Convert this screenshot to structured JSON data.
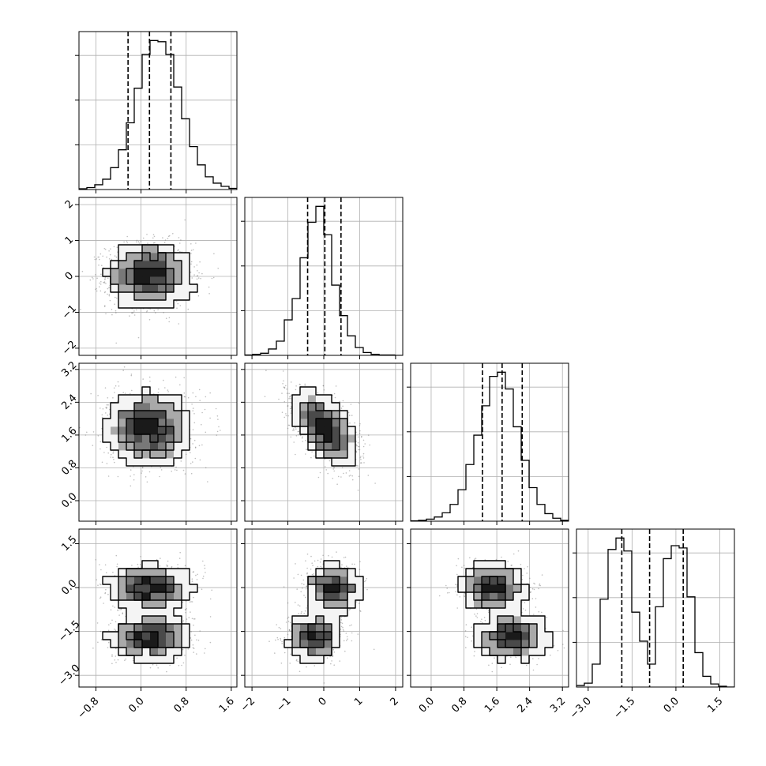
{
  "chart_data": {
    "type": "corner",
    "grid": true,
    "parameters": [
      {
        "range": [
          -1.1,
          1.7
        ],
        "ticks": [
          -0.8,
          0.0,
          0.8,
          1.6
        ],
        "tick_labels": [
          "−0.8",
          "0.0",
          "0.8",
          "1.6"
        ],
        "quantiles": [
          -0.23,
          0.15,
          0.53
        ],
        "histogram": [
          2,
          5,
          12,
          26,
          55,
          100,
          168,
          255,
          340,
          375,
          372,
          340,
          258,
          178,
          108,
          62,
          32,
          16,
          8,
          3
        ],
        "mode": {
          "center": [
            0.15
          ],
          "sd": [
            0.38
          ]
        }
      },
      {
        "range": [
          -2.2,
          2.2
        ],
        "ticks": [
          -2,
          -1,
          0,
          1,
          2
        ],
        "tick_labels": [
          "−2",
          "−1",
          "0",
          "1",
          "2"
        ],
        "quantiles": [
          -0.45,
          0.03,
          0.48
        ],
        "histogram": [
          1,
          3,
          6,
          18,
          40,
          100,
          160,
          275,
          375,
          420,
          340,
          198,
          112,
          55,
          22,
          8,
          3,
          1,
          1,
          0
        ],
        "mode": {
          "center": [
            0.03
          ],
          "sd": [
            0.45
          ]
        }
      },
      {
        "range": [
          -0.5,
          3.35
        ],
        "ticks": [
          0.0,
          0.8,
          1.6,
          2.4,
          3.2
        ],
        "tick_labels": [
          "0.0",
          "0.8",
          "1.6",
          "2.4",
          "3.2"
        ],
        "quantiles": [
          1.25,
          1.73,
          2.22
        ],
        "histogram": [
          1,
          2,
          5,
          10,
          20,
          40,
          75,
          135,
          205,
          275,
          345,
          355,
          315,
          225,
          145,
          80,
          40,
          18,
          7,
          2
        ],
        "mode": {
          "center": [
            1.75
          ],
          "sd": [
            0.45
          ]
        }
      },
      {
        "range": [
          -3.4,
          2.0
        ],
        "ticks": [
          -3.0,
          -1.5,
          0.0,
          1.5
        ],
        "tick_labels": [
          "−3.0",
          "−1.5",
          "0.0",
          "1.5"
        ],
        "quantiles": [
          -1.85,
          -0.9,
          0.25
        ],
        "histogram": [
          2,
          5,
          30,
          115,
          180,
          195,
          178,
          98,
          60,
          30,
          105,
          168,
          185,
          182,
          118,
          45,
          14,
          4,
          1,
          0
        ],
        "mode": {
          "center": [
            0.0,
            -1.7
          ],
          "sd": [
            0.4,
            0.4
          ]
        }
      }
    ]
  }
}
